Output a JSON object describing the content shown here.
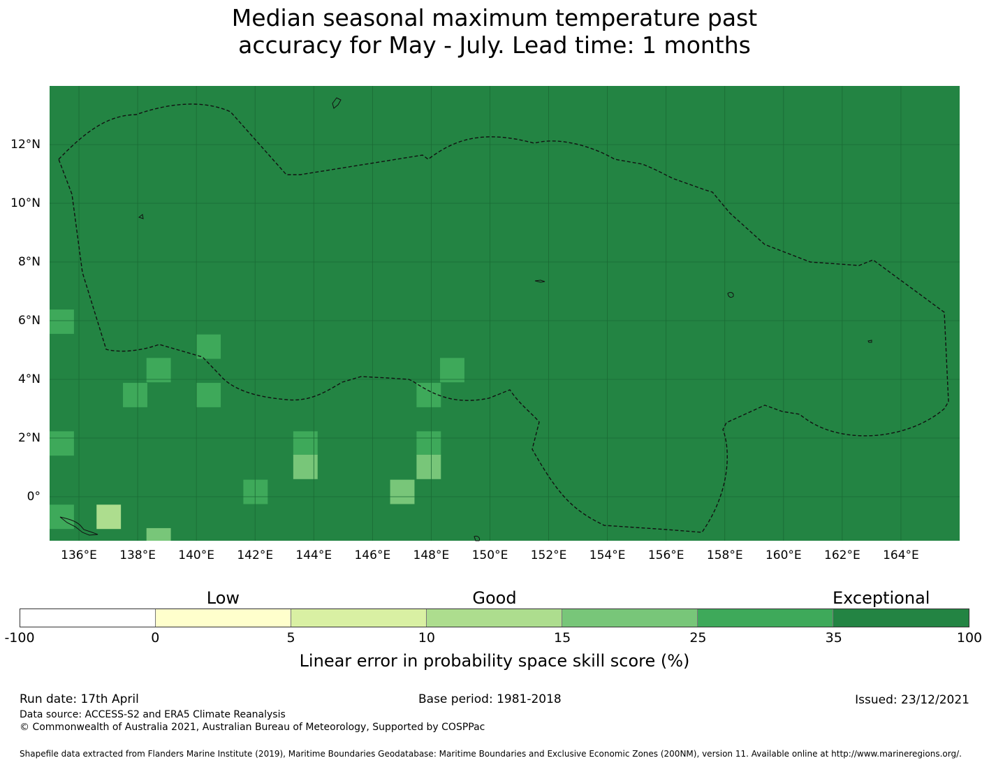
{
  "title": {
    "line1": "Median seasonal maximum temperature past",
    "line2": "accuracy for May - July. Lead time: 1 months"
  },
  "map": {
    "lon_range": [
      135,
      166
    ],
    "lat_range": [
      -1.5,
      14
    ],
    "cell_size_deg": 0.83,
    "x_ticks": [
      "136°E",
      "138°E",
      "140°E",
      "142°E",
      "144°E",
      "146°E",
      "148°E",
      "150°E",
      "152°E",
      "154°E",
      "156°E",
      "158°E",
      "160°E",
      "162°E",
      "164°E"
    ],
    "y_ticks": [
      "12°N",
      "10°N",
      "8°N",
      "6°N",
      "4°N",
      "2°N",
      "0°"
    ],
    "x_tick_values": [
      136,
      138,
      140,
      142,
      144,
      146,
      148,
      150,
      152,
      154,
      156,
      158,
      160,
      162,
      164
    ],
    "y_tick_values": [
      12,
      10,
      8,
      6,
      4,
      2,
      0
    ],
    "background_class": ">35",
    "grid": true,
    "eez_boundary": "dashed",
    "skill_cells": [
      {
        "lon": 135.0,
        "lat": 5.55,
        "class": "25-35"
      },
      {
        "lon": 138.3,
        "lat": 3.9,
        "class": "25-35"
      },
      {
        "lon": 140.0,
        "lat": 4.7,
        "class": "25-35"
      },
      {
        "lon": 137.5,
        "lat": 3.05,
        "class": "25-35"
      },
      {
        "lon": 140.0,
        "lat": 3.05,
        "class": "25-35"
      },
      {
        "lon": 135.0,
        "lat": 1.4,
        "class": "25-35"
      },
      {
        "lon": 143.3,
        "lat": 1.4,
        "class": "25-35"
      },
      {
        "lon": 147.5,
        "lat": 1.4,
        "class": "25-35"
      },
      {
        "lon": 141.6,
        "lat": -0.25,
        "class": "25-35"
      },
      {
        "lon": 135.0,
        "lat": -1.1,
        "class": "25-35"
      },
      {
        "lon": 147.5,
        "lat": 3.05,
        "class": "25-35"
      },
      {
        "lon": 148.3,
        "lat": 3.9,
        "class": "25-35"
      },
      {
        "lon": 143.3,
        "lat": 0.6,
        "class": "15-25"
      },
      {
        "lon": 147.5,
        "lat": 0.6,
        "class": "15-25"
      },
      {
        "lon": 146.6,
        "lat": -0.25,
        "class": "15-25"
      },
      {
        "lon": 136.6,
        "lat": -1.1,
        "class": "10-15"
      },
      {
        "lon": 138.3,
        "lat": -1.9,
        "class": "15-25"
      }
    ]
  },
  "colorbar": {
    "categories": [
      {
        "label": "Low",
        "at": 2.5
      },
      {
        "label": "Good",
        "at": 12.5
      },
      {
        "label": "Exceptional",
        "at": 42
      }
    ],
    "bins": [
      {
        "from": "-100",
        "to": "0",
        "color": "#ffffff"
      },
      {
        "from": "0",
        "to": "5",
        "color": "#ffffcc"
      },
      {
        "from": "5",
        "to": "10",
        "color": "#d9f0a3"
      },
      {
        "from": "10",
        "to": "15",
        "color": "#addd8e"
      },
      {
        "from": "15",
        "to": "25",
        "color": "#78c679"
      },
      {
        "from": "25",
        "to": "35",
        "color": "#3ea95a"
      },
      {
        "from": "35",
        "to": "100",
        "color": "#238443"
      }
    ],
    "ticks": [
      "-100",
      "0",
      "5",
      "10",
      "15",
      "25",
      "35",
      "100"
    ],
    "label": "Linear error in probability space skill score (%)"
  },
  "footer": {
    "run_date": "Run date: 17th April",
    "base_period": "Base period: 1981-2018",
    "issued": "Issued: 23/12/2021",
    "data_source": "Data source: ACCESS-S2 and ERA5 Climate Reanalysis",
    "copyright": "© Commonwealth of Australia 2021, Australian Bureau of Meteorology, Supported by COSPPac",
    "shapefile": "Shapefile data extracted from Flanders Marine Institute (2019), Maritime Boundaries Geodatabase: Maritime Boundaries and Exclusive Economic Zones (200NM), version 11. Available online at http://www.marineregions.org/."
  }
}
